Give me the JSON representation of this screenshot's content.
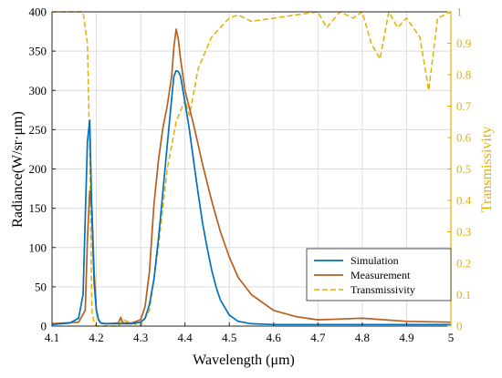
{
  "chart_data": {
    "type": "line",
    "xlabel": "Wavelength (μm)",
    "ylabel_left": "Radiance(W/sr·μm)",
    "ylabel_right": "Transmissivity",
    "xlim": [
      4.1,
      5.0
    ],
    "ylim_left": [
      0,
      400
    ],
    "ylim_right": [
      0,
      1
    ],
    "x_ticks": [
      "4.1",
      "4.2",
      "4.3",
      "4.4",
      "4.5",
      "4.6",
      "4.7",
      "4.8",
      "4.9",
      "5"
    ],
    "y_left_ticks": [
      "0",
      "50",
      "100",
      "150",
      "200",
      "250",
      "300",
      "350",
      "400"
    ],
    "y_right_ticks": [
      "0",
      "0.1",
      "0.2",
      "0.3",
      "0.4",
      "0.5",
      "0.6",
      "0.7",
      "0.8",
      "0.9",
      "1"
    ],
    "grid": true,
    "legend_position": "bottom-right",
    "colors": {
      "simulation": "#0072BD",
      "measurement": "#B85F1E",
      "transmissivity": "#E1B100",
      "right_axis": "#E1B100"
    },
    "series": [
      {
        "name": "Simulation",
        "axis": "left",
        "style": "solid",
        "x": [
          4.1,
          4.14,
          4.16,
          4.17,
          4.18,
          4.185,
          4.19,
          4.195,
          4.2,
          4.205,
          4.21,
          4.22,
          4.25,
          4.28,
          4.3,
          4.31,
          4.32,
          4.33,
          4.34,
          4.35,
          4.36,
          4.37,
          4.375,
          4.38,
          4.385,
          4.39,
          4.4,
          4.41,
          4.42,
          4.43,
          4.44,
          4.45,
          4.46,
          4.47,
          4.48,
          4.5,
          4.52,
          4.55,
          4.6,
          4.7,
          4.8,
          4.9,
          5.0
        ],
        "y": [
          2,
          4,
          10,
          40,
          235,
          262,
          140,
          55,
          20,
          8,
          4,
          3,
          3,
          3,
          5,
          10,
          28,
          60,
          110,
          170,
          230,
          290,
          318,
          325,
          324,
          318,
          285,
          250,
          208,
          168,
          130,
          100,
          72,
          50,
          33,
          14,
          6,
          3,
          2,
          2,
          2,
          2,
          2
        ]
      },
      {
        "name": "Measurement",
        "axis": "left",
        "style": "solid",
        "x": [
          4.1,
          4.16,
          4.175,
          4.18,
          4.185,
          4.19,
          4.195,
          4.2,
          4.205,
          4.21,
          4.22,
          4.25,
          4.255,
          4.26,
          4.28,
          4.3,
          4.31,
          4.32,
          4.33,
          4.34,
          4.35,
          4.36,
          4.37,
          4.375,
          4.38,
          4.385,
          4.39,
          4.4,
          4.42,
          4.44,
          4.46,
          4.48,
          4.5,
          4.52,
          4.55,
          4.6,
          4.65,
          4.7,
          4.8,
          4.9,
          5.0
        ],
        "y": [
          3,
          5,
          20,
          110,
          172,
          150,
          70,
          20,
          8,
          4,
          3,
          4,
          11,
          4,
          4,
          8,
          25,
          70,
          155,
          210,
          252,
          280,
          318,
          355,
          378,
          365,
          340,
          300,
          255,
          205,
          160,
          120,
          88,
          62,
          40,
          20,
          12,
          8,
          10,
          6,
          5
        ]
      },
      {
        "name": "Transmissivity",
        "axis": "right",
        "style": "dashed",
        "x": [
          4.1,
          4.17,
          4.18,
          4.185,
          4.19,
          4.195,
          4.2,
          4.21,
          4.25,
          4.26,
          4.3,
          4.32,
          4.34,
          4.36,
          4.38,
          4.4,
          4.41,
          4.43,
          4.46,
          4.5,
          4.52,
          4.55,
          4.6,
          4.65,
          4.7,
          4.72,
          4.75,
          4.78,
          4.8,
          4.82,
          4.84,
          4.86,
          4.88,
          4.9,
          4.93,
          4.95,
          4.97,
          5.0
        ],
        "y": [
          1.0,
          1.0,
          0.9,
          0.55,
          0.05,
          0.01,
          0.0,
          0.0,
          0.0,
          0.02,
          0.0,
          0.05,
          0.25,
          0.5,
          0.65,
          0.72,
          0.67,
          0.82,
          0.92,
          0.98,
          0.99,
          0.97,
          0.98,
          0.99,
          1.0,
          0.95,
          1.0,
          0.98,
          1.0,
          0.9,
          0.85,
          1.0,
          0.95,
          0.98,
          0.92,
          0.75,
          0.98,
          1.0
        ]
      }
    ]
  }
}
